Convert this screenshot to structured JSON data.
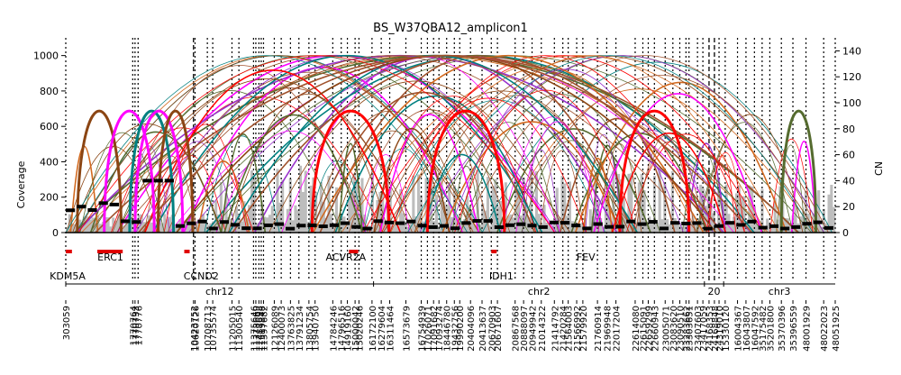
{
  "chart_data": {
    "type": "amplicon-arc",
    "title": "BS_W37QBA12_amplicon1",
    "ylabel_left": "Coverage",
    "ylabel_right": "CN",
    "ylim_coverage": [
      0,
      1100
    ],
    "ylim_cn": [
      0,
      150
    ],
    "coverage_ticks": [
      0,
      200,
      400,
      600,
      800,
      1000
    ],
    "cn_ticks": [
      0,
      20,
      40,
      60,
      80,
      100,
      120,
      140
    ],
    "chromosomes": [
      {
        "name": "chr12",
        "start": 0,
        "end": 0.4
      },
      {
        "name": "chr2",
        "start": 0.4,
        "end": 0.83
      },
      {
        "name": "20",
        "start": 0.83,
        "end": 0.855
      },
      {
        "name": "chr3",
        "start": 0.855,
        "end": 1.0
      }
    ],
    "genes": [
      {
        "name": "KDM5A",
        "pos": 0.0
      },
      {
        "name": "ERC1",
        "pos": 0.058
      },
      {
        "name": "CCND2",
        "pos": 0.176
      },
      {
        "name": "ACVR2A",
        "pos": 0.364
      },
      {
        "name": "IDH1",
        "pos": 0.566
      },
      {
        "name": "FEV",
        "pos": 0.676
      }
    ],
    "gene_bars": [
      [
        0.0,
        0.008
      ],
      [
        0.041,
        0.074
      ],
      [
        0.154,
        0.161
      ],
      [
        0.368,
        0.38
      ],
      [
        0.553,
        0.56
      ]
    ],
    "breakpoints": [
      {
        "label": "303059",
        "pos": 0.0
      },
      {
        "label": "1770764",
        "pos": 0.087
      },
      {
        "label": "1770733",
        "pos": 0.09
      },
      {
        "label": "1770776",
        "pos": 0.094
      },
      {
        "label": "10423752",
        "pos": 0.166
      },
      {
        "label": "10620126",
        "pos": 0.168
      },
      {
        "label": "10708713",
        "pos": 0.184
      },
      {
        "label": "10735574",
        "pos": 0.191
      },
      {
        "label": "11205015",
        "pos": 0.216
      },
      {
        "label": "11300540",
        "pos": 0.225
      },
      {
        "label": "11375646",
        "pos": 0.244
      },
      {
        "label": "11378669",
        "pos": 0.247
      },
      {
        "label": "11487698",
        "pos": 0.251
      },
      {
        "label": "11519848",
        "pos": 0.254
      },
      {
        "label": "11597682",
        "pos": 0.257
      },
      {
        "label": "12126089",
        "pos": 0.271
      },
      {
        "label": "12400073",
        "pos": 0.28
      },
      {
        "label": "13763825",
        "pos": 0.292
      },
      {
        "label": "13791234",
        "pos": 0.303
      },
      {
        "label": "13805754",
        "pos": 0.316
      },
      {
        "label": "13940750",
        "pos": 0.324
      },
      {
        "label": "14784246",
        "pos": 0.347
      },
      {
        "label": "14796516",
        "pos": 0.358
      },
      {
        "label": "14919160",
        "pos": 0.366
      },
      {
        "label": "15000042",
        "pos": 0.376
      },
      {
        "label": "15020246",
        "pos": 0.381
      },
      {
        "label": "16172100",
        "pos": 0.398
      },
      {
        "label": "16279604",
        "pos": 0.41
      },
      {
        "label": "16311464",
        "pos": 0.421
      },
      {
        "label": "16573679",
        "pos": 0.442
      },
      {
        "label": "16754939",
        "pos": 0.462
      },
      {
        "label": "17026071",
        "pos": 0.47
      },
      {
        "label": "17091682",
        "pos": 0.478
      },
      {
        "label": "17093274",
        "pos": 0.485
      },
      {
        "label": "18446780",
        "pos": 0.495
      },
      {
        "label": "19432756",
        "pos": 0.505
      },
      {
        "label": "19990200",
        "pos": 0.512
      },
      {
        "label": "20404096",
        "pos": 0.526
      },
      {
        "label": "20413637",
        "pos": 0.541
      },
      {
        "label": "20670903",
        "pos": 0.553
      },
      {
        "label": "20671607",
        "pos": 0.561
      },
      {
        "label": "20867568",
        "pos": 0.584
      },
      {
        "label": "20888097",
        "pos": 0.595
      },
      {
        "label": "20949942",
        "pos": 0.606
      },
      {
        "label": "21014322",
        "pos": 0.618
      },
      {
        "label": "21414792",
        "pos": 0.635
      },
      {
        "label": "21420284",
        "pos": 0.646
      },
      {
        "label": "21564003",
        "pos": 0.653
      },
      {
        "label": "21566992",
        "pos": 0.664
      },
      {
        "label": "21579920",
        "pos": 0.672
      },
      {
        "label": "21760914",
        "pos": 0.691
      },
      {
        "label": "21969948",
        "pos": 0.703
      },
      {
        "label": "22017204",
        "pos": 0.715
      },
      {
        "label": "22614080",
        "pos": 0.74
      },
      {
        "label": "22615091",
        "pos": 0.75
      },
      {
        "label": "22659299",
        "pos": 0.757
      },
      {
        "label": "22660943",
        "pos": 0.765
      },
      {
        "label": "23005071",
        "pos": 0.779
      },
      {
        "label": "23083620",
        "pos": 0.789
      },
      {
        "label": "23090510",
        "pos": 0.798
      },
      {
        "label": "23283662",
        "pos": 0.806
      },
      {
        "label": "23303651",
        "pos": 0.81
      },
      {
        "label": "23407603",
        "pos": 0.821
      },
      {
        "label": "23417059",
        "pos": 0.828
      },
      {
        "label": "24168353",
        "pos": 0.836
      },
      {
        "label": "24168848",
        "pos": 0.843
      },
      {
        "label": "24319010",
        "pos": 0.849
      },
      {
        "label": "15330120",
        "pos": 0.857
      },
      {
        "label": "16004367",
        "pos": 0.873
      },
      {
        "label": "16043807",
        "pos": 0.884
      },
      {
        "label": "16047592",
        "pos": 0.895
      },
      {
        "label": "35175482",
        "pos": 0.905
      },
      {
        "label": "35201800",
        "pos": 0.915
      },
      {
        "label": "35370396",
        "pos": 0.93
      },
      {
        "label": "35396559",
        "pos": 0.945
      },
      {
        "label": "48001929",
        "pos": 0.962
      },
      {
        "label": "48022023",
        "pos": 0.985
      },
      {
        "label": "48051925",
        "pos": 1.0
      }
    ]
  }
}
